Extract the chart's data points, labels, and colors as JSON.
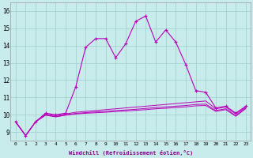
{
  "x": [
    0,
    1,
    2,
    3,
    4,
    5,
    6,
    7,
    8,
    9,
    10,
    11,
    12,
    13,
    14,
    15,
    16,
    17,
    18,
    19,
    20,
    21,
    22,
    23
  ],
  "line1": [
    9.6,
    8.8,
    9.6,
    10.1,
    10.0,
    10.1,
    11.6,
    13.9,
    14.4,
    14.4,
    13.3,
    14.1,
    15.4,
    15.7,
    14.2,
    14.9,
    14.2,
    12.9,
    11.4,
    11.3,
    10.4,
    10.5,
    10.1,
    10.5
  ],
  "line2": [
    9.6,
    8.8,
    9.6,
    10.05,
    9.95,
    10.05,
    10.15,
    10.2,
    10.25,
    10.3,
    10.35,
    10.4,
    10.45,
    10.5,
    10.55,
    10.6,
    10.65,
    10.7,
    10.75,
    10.8,
    10.35,
    10.45,
    10.05,
    10.45
  ],
  "line3": [
    9.6,
    8.8,
    9.6,
    10.0,
    9.9,
    10.0,
    10.08,
    10.13,
    10.17,
    10.2,
    10.25,
    10.28,
    10.32,
    10.37,
    10.42,
    10.46,
    10.5,
    10.54,
    10.6,
    10.62,
    10.25,
    10.35,
    9.95,
    10.4
  ],
  "line4": [
    9.6,
    8.8,
    9.6,
    9.98,
    9.88,
    9.98,
    10.05,
    10.09,
    10.12,
    10.15,
    10.19,
    10.22,
    10.26,
    10.3,
    10.35,
    10.38,
    10.42,
    10.46,
    10.52,
    10.54,
    10.2,
    10.3,
    9.92,
    10.36
  ],
  "color": "#bb00bb",
  "bg_color": "#c8ebeb",
  "grid_color": "#a0cccc",
  "ylim": [
    8.5,
    16.5
  ],
  "yticks": [
    9,
    10,
    11,
    12,
    13,
    14,
    15,
    16
  ],
  "xlabel": "Windchill (Refroidissement éolien,°C)",
  "xtick_fontsize": 4.5,
  "ytick_fontsize": 5.5,
  "xlabel_fontsize": 5.0
}
